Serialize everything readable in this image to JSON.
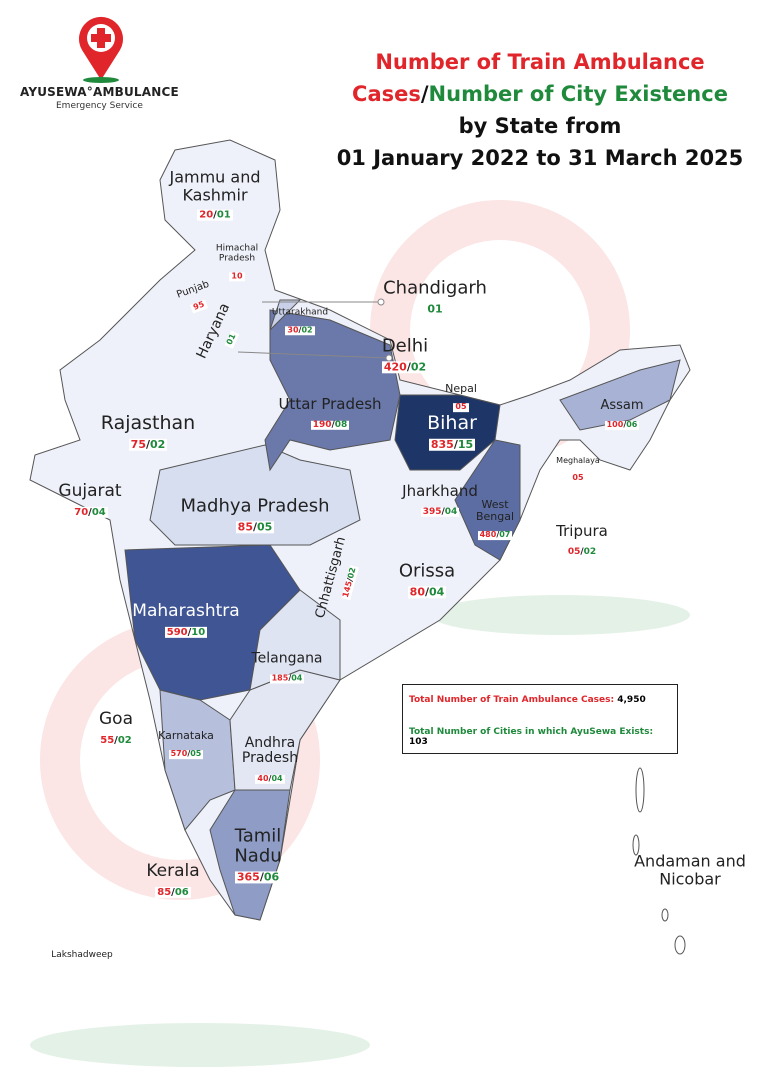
{
  "header": {
    "brand": "AYUSEWA°AMBULANCE",
    "tagline": "Emergency Service"
  },
  "title": {
    "cases_part": "Number of Train Ambulance Cases",
    "separator": "/",
    "cities_part": "Number of City Existence",
    "line3": "by State from",
    "line4": "01 January 2022 to 31 March 2025"
  },
  "states": [
    {
      "name": "Jammu and Kashmir",
      "cases": "20",
      "cities": "01"
    },
    {
      "name": "Himachal Pradesh",
      "cases": "10"
    },
    {
      "name": "Punjab",
      "cases": "95"
    },
    {
      "name": "Haryana",
      "cities": "01"
    },
    {
      "name": "Uttarakhand",
      "cases": "30",
      "cities": "02"
    },
    {
      "name": "Chandigarh",
      "cities": "01"
    },
    {
      "name": "Delhi",
      "cases": "420",
      "cities": "02"
    },
    {
      "name": "Nepal",
      "cases": "05"
    },
    {
      "name": "Rajasthan",
      "cases": "75",
      "cities": "02"
    },
    {
      "name": "Uttar Pradesh",
      "cases": "190",
      "cities": "08"
    },
    {
      "name": "Bihar",
      "cases": "835",
      "cities": "15"
    },
    {
      "name": "Assam",
      "cases": "100",
      "cities": "06"
    },
    {
      "name": "Meghalaya",
      "cases": "05"
    },
    {
      "name": "Gujarat",
      "cases": "70",
      "cities": "04"
    },
    {
      "name": "Madhya Pradesh",
      "cases": "85",
      "cities": "05"
    },
    {
      "name": "Jharkhand",
      "cases": "395",
      "cities": "04"
    },
    {
      "name": "West Bengal",
      "cases": "480",
      "cities": "07"
    },
    {
      "name": "Tripura",
      "cases": "05",
      "cities": "02"
    },
    {
      "name": "Chhattisgarh",
      "cases": "145",
      "cities": "02"
    },
    {
      "name": "Orissa",
      "cases": "80",
      "cities": "04"
    },
    {
      "name": "Maharashtra",
      "cases": "590",
      "cities": "10"
    },
    {
      "name": "Telangana",
      "cases": "185",
      "cities": "04"
    },
    {
      "name": "Goa",
      "cases": "55",
      "cities": "02"
    },
    {
      "name": "Karnataka",
      "cases": "570",
      "cities": "05"
    },
    {
      "name": "Andhra Pradesh",
      "cases": "40",
      "cities": "04"
    },
    {
      "name": "Tamil Nadu",
      "cases": "365",
      "cities": "06"
    },
    {
      "name": "Kerala",
      "cases": "85",
      "cities": "06"
    },
    {
      "name": "Andaman and Nicobar"
    },
    {
      "name": "Lakshadweep"
    }
  ],
  "totals": {
    "cases_label": "Total Number of Train Ambulance Cases:",
    "cases_value": "4,950",
    "cities_label": "Total Number of Cities in which AyuSewa Exists:",
    "cities_value": "103"
  }
}
